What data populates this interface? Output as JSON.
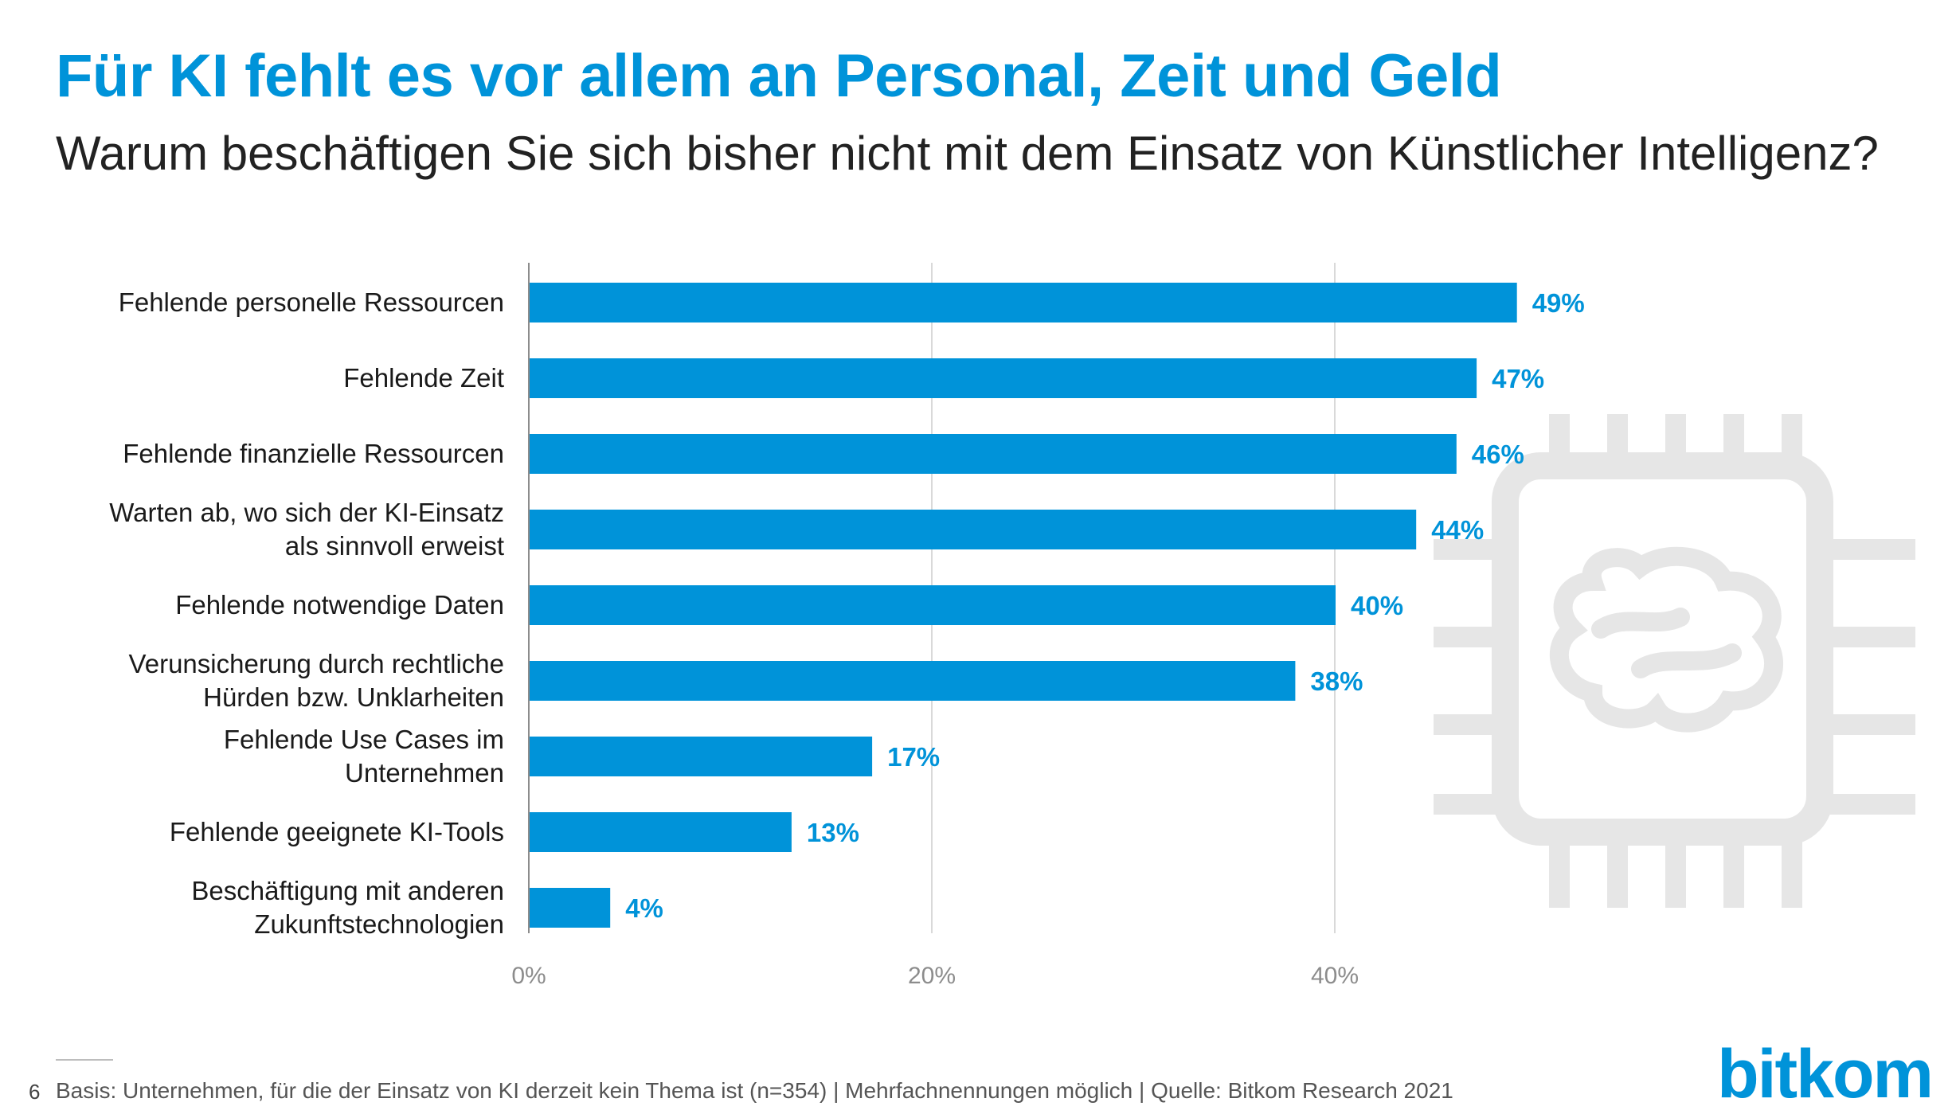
{
  "title": "Für KI fehlt es vor allem an Personal, Zeit und Geld",
  "subtitle": "Warum beschäftigen Sie sich bisher nicht mit dem Einsatz von Künstlicher Intelligenz?",
  "footer": {
    "page_number": "6",
    "note": "Basis: Unternehmen, für die der Einsatz von KI derzeit kein Thema ist (n=354) | Mehrfachnennungen möglich | Quelle: Bitkom Research 2021",
    "logo": "bitkom"
  },
  "colors": {
    "accent": "#0093d9",
    "grid": "#d9d9d9",
    "axis": "#8c8c8c",
    "watermark": "#e6e6e6"
  },
  "chart_data": {
    "type": "bar",
    "orientation": "horizontal",
    "categories": [
      [
        "Fehlende personelle Ressourcen"
      ],
      [
        "Fehlende Zeit"
      ],
      [
        "Fehlende finanzielle Ressourcen"
      ],
      [
        "Warten ab, wo sich der KI-Einsatz",
        "als sinnvoll erweist"
      ],
      [
        "Fehlende notwendige Daten"
      ],
      [
        "Verunsicherung durch rechtliche",
        "Hürden bzw. Unklarheiten"
      ],
      [
        "Fehlende Use Cases im",
        "Unternehmen"
      ],
      [
        "Fehlende geeignete KI-Tools"
      ],
      [
        "Beschäftigung mit anderen",
        "Zukunftstechnologien"
      ]
    ],
    "values": [
      49,
      47,
      46,
      44,
      40,
      38,
      17,
      13,
      4
    ],
    "value_labels": [
      "49%",
      "47%",
      "46%",
      "44%",
      "40%",
      "38%",
      "17%",
      "13%",
      "4%"
    ],
    "xlim": [
      0,
      60
    ],
    "xticks": [
      0,
      20,
      40
    ],
    "xtick_labels": [
      "0%",
      "20%",
      "40%"
    ],
    "xlabel": "",
    "ylabel": "",
    "grid": true
  }
}
